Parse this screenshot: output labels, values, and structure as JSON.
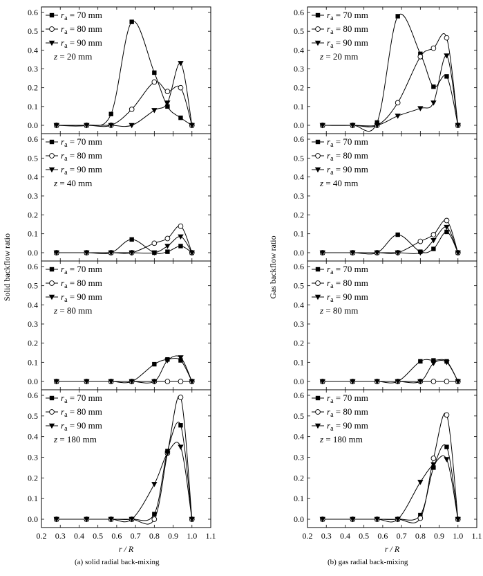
{
  "left_column": {
    "ylabel": "Solid backflow ratio",
    "xlabel": "r / R",
    "caption": "(a) solid radial back-mixing"
  },
  "right_column": {
    "ylabel": "Gas backflow ratio",
    "xlabel": "r / R",
    "caption": "(b) gas radial back-mixing"
  },
  "legend_labels": [
    "r_a = 70 mm",
    "r_a = 80 mm",
    "r_a = 90 mm"
  ],
  "chart_data": [
    {
      "type": "scatter",
      "panel": "solid",
      "z_label": "z = 20 mm",
      "xlim": [
        0.2,
        1.1
      ],
      "ylim": [
        0,
        0.6
      ],
      "grid": false,
      "legend": "top-left",
      "x": [
        0.28,
        0.44,
        0.57,
        0.68,
        0.8,
        0.87,
        0.94,
        1.0
      ],
      "series": [
        {
          "name": "r_a = 70 mm",
          "marker": "square",
          "values": [
            0.0,
            0.0,
            0.06,
            0.55,
            0.28,
            0.1,
            0.04,
            0.0
          ]
        },
        {
          "name": "r_a = 80 mm",
          "marker": "circle",
          "values": [
            0.0,
            0.0,
            0.0,
            0.085,
            0.23,
            0.18,
            0.2,
            0.0
          ]
        },
        {
          "name": "r_a = 90 mm",
          "marker": "triangle",
          "values": [
            0.0,
            0.0,
            0.0,
            0.0,
            0.08,
            0.12,
            0.33,
            0.0
          ]
        }
      ]
    },
    {
      "type": "scatter",
      "panel": "solid",
      "z_label": "z = 40 mm",
      "xlim": [
        0.2,
        1.1
      ],
      "ylim": [
        0,
        0.6
      ],
      "grid": false,
      "legend": "top-left",
      "x": [
        0.28,
        0.44,
        0.57,
        0.68,
        0.8,
        0.87,
        0.94,
        1.0
      ],
      "series": [
        {
          "name": "r_a = 70 mm",
          "marker": "square",
          "values": [
            0.0,
            0.0,
            0.0,
            0.07,
            0.0,
            0.005,
            0.035,
            0.0
          ]
        },
        {
          "name": "r_a = 80 mm",
          "marker": "circle",
          "values": [
            0.0,
            0.0,
            0.0,
            0.0,
            0.05,
            0.075,
            0.14,
            0.0
          ]
        },
        {
          "name": "r_a = 90 mm",
          "marker": "triangle",
          "values": [
            0.0,
            0.0,
            0.0,
            0.0,
            0.0,
            0.035,
            0.085,
            0.0
          ]
        }
      ]
    },
    {
      "type": "scatter",
      "panel": "solid",
      "z_label": "z = 80 mm",
      "xlim": [
        0.2,
        1.1
      ],
      "ylim": [
        0,
        0.6
      ],
      "grid": false,
      "legend": "top-left",
      "x": [
        0.28,
        0.44,
        0.57,
        0.68,
        0.8,
        0.87,
        0.94,
        1.0
      ],
      "series": [
        {
          "name": "r_a = 70 mm",
          "marker": "square",
          "values": [
            0.0,
            0.0,
            0.0,
            0.0,
            0.09,
            0.115,
            0.11,
            0.0
          ]
        },
        {
          "name": "r_a = 80 mm",
          "marker": "circle",
          "values": [
            0.0,
            0.0,
            0.0,
            0.0,
            0.0,
            0.0,
            0.0,
            0.0
          ]
        },
        {
          "name": "r_a = 90 mm",
          "marker": "triangle",
          "values": [
            0.0,
            0.0,
            0.0,
            0.0,
            0.0,
            0.11,
            0.125,
            0.0
          ]
        }
      ]
    },
    {
      "type": "scatter",
      "panel": "solid",
      "z_label": "z = 180 mm",
      "xlim": [
        0.2,
        1.1
      ],
      "ylim": [
        0,
        0.6
      ],
      "grid": false,
      "legend": "top-left",
      "x": [
        0.28,
        0.44,
        0.57,
        0.68,
        0.8,
        0.87,
        0.94,
        1.0
      ],
      "series": [
        {
          "name": "r_a = 70 mm",
          "marker": "square",
          "values": [
            0.0,
            0.0,
            0.0,
            0.0,
            0.025,
            0.33,
            0.455,
            0.0
          ]
        },
        {
          "name": "r_a = 80 mm",
          "marker": "circle",
          "values": [
            0.0,
            0.0,
            0.0,
            0.0,
            0.0,
            0.32,
            0.59,
            0.0
          ]
        },
        {
          "name": "r_a = 90 mm",
          "marker": "triangle",
          "values": [
            0.0,
            0.0,
            0.0,
            0.0,
            0.17,
            0.32,
            0.35,
            0.0
          ]
        }
      ]
    },
    {
      "type": "scatter",
      "panel": "gas",
      "z_label": "z = 20 mm",
      "xlim": [
        0.2,
        1.1
      ],
      "ylim": [
        0,
        0.6
      ],
      "grid": false,
      "legend": "top-left",
      "x": [
        0.28,
        0.44,
        0.57,
        0.68,
        0.8,
        0.87,
        0.94,
        1.0
      ],
      "series": [
        {
          "name": "r_a = 70 mm",
          "marker": "square",
          "values": [
            0.0,
            0.0,
            0.015,
            0.58,
            0.38,
            0.205,
            0.26,
            0.0
          ]
        },
        {
          "name": "r_a = 80 mm",
          "marker": "circle",
          "values": [
            0.0,
            0.0,
            0.0,
            0.12,
            0.365,
            0.41,
            0.465,
            0.0
          ]
        },
        {
          "name": "r_a = 90 mm",
          "marker": "triangle",
          "values": [
            0.0,
            0.0,
            0.0,
            0.05,
            0.09,
            0.12,
            0.37,
            0.0
          ]
        }
      ]
    },
    {
      "type": "scatter",
      "panel": "gas",
      "z_label": "z = 40 mm",
      "xlim": [
        0.2,
        1.1
      ],
      "ylim": [
        0,
        0.6
      ],
      "grid": false,
      "legend": "top-left",
      "x": [
        0.28,
        0.44,
        0.57,
        0.68,
        0.8,
        0.87,
        0.94,
        1.0
      ],
      "series": [
        {
          "name": "r_a = 70 mm",
          "marker": "square",
          "values": [
            0.0,
            0.0,
            0.0,
            0.095,
            0.005,
            0.02,
            0.11,
            0.0
          ]
        },
        {
          "name": "r_a = 80 mm",
          "marker": "circle",
          "values": [
            0.0,
            0.0,
            0.0,
            0.0,
            0.06,
            0.095,
            0.17,
            0.0
          ]
        },
        {
          "name": "r_a = 90 mm",
          "marker": "triangle",
          "values": [
            0.0,
            0.0,
            0.0,
            0.0,
            0.0,
            0.065,
            0.135,
            0.0
          ]
        }
      ]
    },
    {
      "type": "scatter",
      "panel": "gas",
      "z_label": "z = 80 mm",
      "xlim": [
        0.2,
        1.1
      ],
      "ylim": [
        0,
        0.6
      ],
      "grid": false,
      "legend": "top-left",
      "x": [
        0.28,
        0.44,
        0.57,
        0.68,
        0.8,
        0.87,
        0.94,
        1.0
      ],
      "series": [
        {
          "name": "r_a = 70 mm",
          "marker": "square",
          "values": [
            0.0,
            0.0,
            0.0,
            0.0,
            0.105,
            0.11,
            0.105,
            0.0
          ]
        },
        {
          "name": "r_a = 80 mm",
          "marker": "circle",
          "values": [
            0.0,
            0.0,
            0.0,
            0.0,
            0.0,
            0.0,
            0.0,
            0.0
          ]
        },
        {
          "name": "r_a = 90 mm",
          "marker": "triangle",
          "values": [
            0.0,
            0.0,
            0.0,
            0.0,
            0.0,
            0.095,
            0.1,
            0.0
          ]
        }
      ]
    },
    {
      "type": "scatter",
      "panel": "gas",
      "z_label": "z = 180 mm",
      "xlim": [
        0.2,
        1.1
      ],
      "ylim": [
        0,
        0.6
      ],
      "grid": false,
      "legend": "top-left",
      "x": [
        0.28,
        0.44,
        0.57,
        0.68,
        0.8,
        0.87,
        0.94,
        1.0
      ],
      "series": [
        {
          "name": "r_a = 70 mm",
          "marker": "square",
          "values": [
            0.0,
            0.0,
            0.0,
            0.0,
            0.02,
            0.25,
            0.35,
            0.0
          ]
        },
        {
          "name": "r_a = 80 mm",
          "marker": "circle",
          "values": [
            0.0,
            0.0,
            0.0,
            0.0,
            0.005,
            0.295,
            0.505,
            0.0
          ]
        },
        {
          "name": "r_a = 90 mm",
          "marker": "triangle",
          "values": [
            0.0,
            0.0,
            0.0,
            0.0,
            0.18,
            0.265,
            0.29,
            0.0
          ]
        }
      ]
    }
  ]
}
